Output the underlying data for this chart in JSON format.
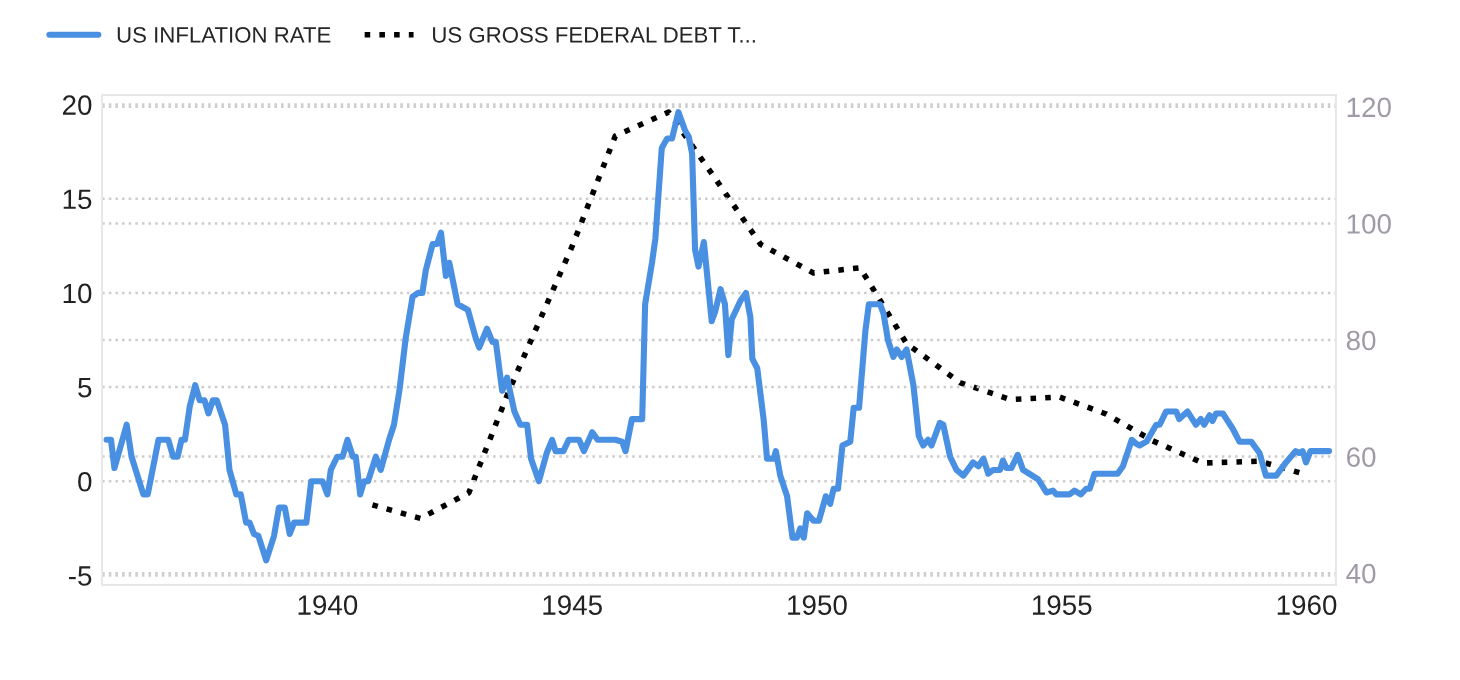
{
  "chart_data": {
    "type": "line",
    "xlim": [
      1935.4,
      1960.6
    ],
    "xticks": [
      1940,
      1945,
      1950,
      1955,
      1960
    ],
    "ylim": [
      -5.5,
      20.5
    ],
    "yticks": [
      -5,
      0,
      5,
      10,
      15,
      20
    ],
    "y2lim": [
      38,
      122
    ],
    "y2ticks": [
      40,
      60,
      80,
      100,
      120
    ],
    "grid": true,
    "legend": "top left",
    "series": [
      {
        "name": "US INFLATION RATE",
        "color": "#4a90e2",
        "line_style": "solid",
        "x": [
          1935.49,
          1935.58,
          1935.65,
          1935.9,
          1936.0,
          1936.24,
          1936.33,
          1936.55,
          1936.75,
          1936.85,
          1936.94,
          1937.02,
          1937.09,
          1937.19,
          1937.3,
          1937.39,
          1937.49,
          1937.57,
          1937.66,
          1937.74,
          1937.91,
          1938.0,
          1938.14,
          1938.23,
          1938.34,
          1938.41,
          1938.5,
          1938.59,
          1938.75,
          1938.91,
          1939.01,
          1939.13,
          1939.23,
          1939.32,
          1939.57,
          1939.67,
          1939.9,
          1940.0,
          1940.07,
          1940.2,
          1940.31,
          1940.41,
          1940.52,
          1940.58,
          1940.67,
          1940.75,
          1940.83,
          1940.99,
          1941.09,
          1941.26,
          1941.36,
          1941.47,
          1941.6,
          1941.74,
          1941.85,
          1941.94,
          1942.01,
          1942.15,
          1942.24,
          1942.32,
          1942.42,
          1942.49,
          1942.66,
          1942.87,
          1943.03,
          1943.1,
          1943.26,
          1943.37,
          1943.44,
          1943.57,
          1943.67,
          1943.82,
          1943.94,
          1944.08,
          1944.16,
          1944.32,
          1944.48,
          1944.59,
          1944.66,
          1944.82,
          1944.93,
          1945.14,
          1945.24,
          1945.41,
          1945.52,
          1945.88,
          1946.02,
          1946.09,
          1946.22,
          1946.43,
          1946.49,
          1946.63,
          1946.7,
          1946.83,
          1946.94,
          1947.04,
          1947.17,
          1947.31,
          1947.38,
          1947.45,
          1947.51,
          1947.58,
          1947.69,
          1947.85,
          1947.92,
          1948.03,
          1948.12,
          1948.19,
          1948.26,
          1948.44,
          1948.55,
          1948.64,
          1948.68,
          1948.78,
          1948.91,
          1948.98,
          1949.12,
          1949.16,
          1949.25,
          1949.39,
          1949.5,
          1949.59,
          1949.66,
          1949.73,
          1949.8,
          1949.93,
          1950.04,
          1950.18,
          1950.27,
          1950.34,
          1950.43,
          1950.52,
          1950.68,
          1950.75,
          1950.86,
          1950.99,
          1951.06,
          1951.29,
          1951.36,
          1951.45,
          1951.56,
          1951.63,
          1951.73,
          1951.83,
          1951.97,
          1952.08,
          1952.17,
          1952.27,
          1952.34,
          1952.51,
          1952.58,
          1952.72,
          1952.85,
          1952.99,
          1953.19,
          1953.3,
          1953.4,
          1953.5,
          1953.6,
          1953.74,
          1953.8,
          1953.87,
          1953.97,
          1954.1,
          1954.21,
          1954.52,
          1954.69,
          1954.82,
          1954.89,
          1955.16,
          1955.26,
          1955.39,
          1955.5,
          1955.57,
          1955.67,
          1956.14,
          1956.25,
          1956.43,
          1956.52,
          1956.59,
          1956.73,
          1956.93,
          1957.0,
          1957.13,
          1957.34,
          1957.4,
          1957.57,
          1957.74,
          1957.84,
          1957.91,
          1958.02,
          1958.08,
          1958.15,
          1958.29,
          1958.49,
          1958.63,
          1958.87,
          1959.04,
          1959.17,
          1959.38,
          1959.58,
          1959.78,
          1959.85,
          1959.92,
          1959.99,
          1960.08,
          1960.46
        ],
        "values": [
          2.2,
          2.2,
          0.7,
          3.0,
          1.3,
          -0.7,
          -0.7,
          2.2,
          2.2,
          1.3,
          1.3,
          2.2,
          2.2,
          4.0,
          5.1,
          4.3,
          4.3,
          3.6,
          4.3,
          4.3,
          3.0,
          0.6,
          -0.7,
          -0.7,
          -2.2,
          -2.2,
          -2.8,
          -2.9,
          -4.2,
          -2.9,
          -1.4,
          -1.4,
          -2.8,
          -2.2,
          -2.2,
          0,
          0,
          -0.7,
          0.6,
          1.3,
          1.3,
          2.2,
          1.3,
          1.3,
          -0.7,
          0,
          0,
          1.3,
          0.6,
          2.2,
          3.0,
          4.8,
          7.6,
          9.8,
          10.0,
          10.0,
          11.2,
          12.6,
          12.6,
          13.2,
          10.9,
          11.6,
          9.4,
          9.1,
          7.6,
          7.1,
          8.1,
          7.4,
          7.4,
          4.8,
          5.5,
          3.7,
          3.0,
          3.0,
          1.2,
          0,
          1.5,
          2.2,
          1.6,
          1.6,
          2.2,
          2.2,
          1.6,
          2.6,
          2.2,
          2.2,
          2.1,
          1.6,
          3.3,
          3.3,
          9.4,
          11.6,
          12.9,
          17.7,
          18.2,
          18.2,
          19.6,
          18.6,
          18.3,
          17.4,
          12.3,
          11.4,
          12.7,
          8.5,
          9.0,
          10.2,
          9.4,
          6.7,
          8.6,
          9.6,
          10.0,
          8.7,
          6.5,
          6.0,
          3.3,
          1.2,
          1.2,
          1.6,
          0.3,
          -0.8,
          -3.0,
          -3.0,
          -2.5,
          -3.0,
          -1.7,
          -2.1,
          -2.1,
          -0.8,
          -1.2,
          -0.4,
          -0.4,
          1.9,
          2.1,
          3.9,
          3.9,
          8.0,
          9.4,
          9.4,
          8.9,
          7.5,
          6.6,
          7.0,
          6.6,
          7.0,
          5.1,
          2.4,
          1.9,
          2.2,
          1.9,
          3.1,
          3.0,
          1.3,
          0.6,
          0.3,
          1.0,
          0.8,
          1.2,
          0.4,
          0.6,
          0.6,
          1.1,
          0.7,
          0.7,
          1.4,
          0.6,
          0.1,
          -0.6,
          -0.5,
          -0.7,
          -0.7,
          -0.5,
          -0.7,
          -0.4,
          -0.4,
          0.4,
          0.4,
          0.8,
          2.2,
          2.0,
          1.9,
          2.1,
          3.0,
          3.0,
          3.7,
          3.7,
          3.3,
          3.7,
          3.0,
          3.3,
          3.0,
          3.5,
          3.2,
          3.6,
          3.6,
          2.8,
          2.1,
          2.1,
          1.5,
          0.3,
          0.3,
          1.0,
          1.6,
          1.5,
          1.6,
          1.0,
          1.6,
          1.6
        ]
      },
      {
        "name": "US GROSS FEDERAL DEBT T...",
        "color": "#000000",
        "axis": "y2",
        "line_style": "dotted",
        "x": [
          1940.92,
          1941.9,
          1942.89,
          1943.71,
          1945.0,
          1945.88,
          1946.97,
          1947.89,
          1948.85,
          1949.93,
          1950.88,
          1951.83,
          1952.92,
          1953.94,
          1954.96,
          1955.91,
          1956.86,
          1957.88,
          1959.04,
          1959.99
        ],
        "values": [
          51.7,
          49.4,
          53.8,
          71.3,
          96.1,
          115.0,
          119.1,
          108.1,
          96.4,
          91.5,
          92.4,
          79.4,
          72.7,
          69.8,
          70.2,
          67.3,
          62.7,
          58.9,
          59.2,
          56.9
        ]
      }
    ]
  }
}
